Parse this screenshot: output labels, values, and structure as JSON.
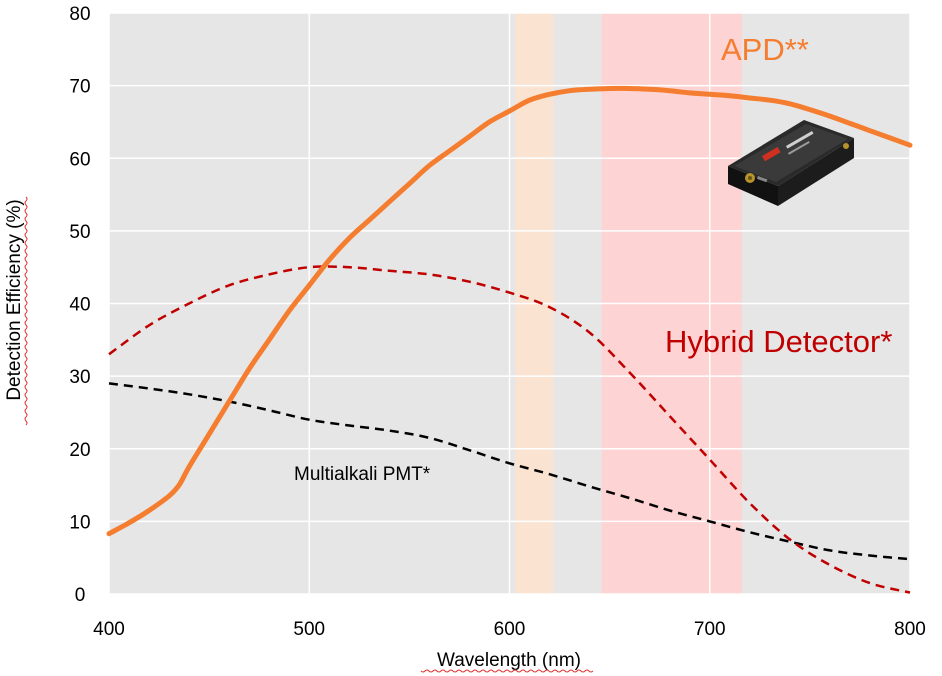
{
  "chart_data": {
    "type": "line",
    "xlabel": "Wavelength (nm)",
    "ylabel": "Detection Efficiency (%)",
    "xlim": [
      400,
      800
    ],
    "ylim": [
      0,
      80
    ],
    "xticks": [
      400,
      500,
      600,
      700,
      800
    ],
    "yticks": [
      0,
      10,
      20,
      30,
      40,
      50,
      60,
      70,
      80
    ],
    "grid": true,
    "background_color": "#e6e6e6",
    "bands": [
      {
        "x_start": 603,
        "x_end": 622,
        "color": "#fbe3d2"
      },
      {
        "x_start": 646,
        "x_end": 716,
        "color": "#fdd3d3"
      }
    ],
    "series": [
      {
        "name": "APD**",
        "color": "#f47d30",
        "style": "solid",
        "x": [
          400,
          410,
          420,
          430,
          435,
          440,
          450,
          460,
          470,
          480,
          490,
          500,
          510,
          520,
          530,
          540,
          550,
          560,
          570,
          580,
          590,
          600,
          610,
          620,
          630,
          640,
          650,
          660,
          670,
          680,
          690,
          700,
          710,
          720,
          730,
          740,
          750,
          760,
          770,
          780,
          790,
          800
        ],
        "values": [
          8.3,
          9.8,
          11.5,
          13.5,
          15.0,
          17.5,
          22.0,
          26.5,
          31.0,
          35.0,
          39.0,
          42.5,
          46.0,
          49.0,
          51.5,
          54.0,
          56.5,
          59.0,
          61.0,
          63.0,
          65.0,
          66.5,
          68.0,
          68.8,
          69.3,
          69.5,
          69.6,
          69.6,
          69.5,
          69.3,
          69.0,
          68.8,
          68.6,
          68.3,
          68.0,
          67.5,
          66.7,
          65.8,
          64.8,
          63.8,
          62.8,
          61.8
        ]
      },
      {
        "name": "Hybrid Detector*",
        "color": "#c00000",
        "style": "dashed",
        "x": [
          400,
          420,
          440,
          460,
          480,
          500,
          520,
          540,
          560,
          580,
          600,
          620,
          640,
          660,
          680,
          700,
          720,
          740,
          760,
          780,
          800
        ],
        "values": [
          33.0,
          37.0,
          40.0,
          42.5,
          44.0,
          45.0,
          45.0,
          44.5,
          44.0,
          43.0,
          41.5,
          39.5,
          36.0,
          30.5,
          24.5,
          18.5,
          12.5,
          7.5,
          4.0,
          1.5,
          0.2
        ]
      },
      {
        "name": "Multialkali PMT*",
        "color": "#000000",
        "style": "dashed",
        "x": [
          400,
          420,
          440,
          460,
          480,
          500,
          520,
          540,
          560,
          580,
          600,
          620,
          640,
          660,
          680,
          700,
          720,
          740,
          760,
          780,
          800
        ],
        "values": [
          29.0,
          28.3,
          27.5,
          26.5,
          25.3,
          24.0,
          23.2,
          22.5,
          21.5,
          19.8,
          18.0,
          16.5,
          14.8,
          13.2,
          11.5,
          10.0,
          8.5,
          7.2,
          6.0,
          5.3,
          4.8
        ]
      }
    ]
  },
  "labels": {
    "apd": "APD**",
    "hybrid": "Hybrid Detector*",
    "pmt": "Multialkali PMT*"
  },
  "device_image": "apd-module-photo"
}
